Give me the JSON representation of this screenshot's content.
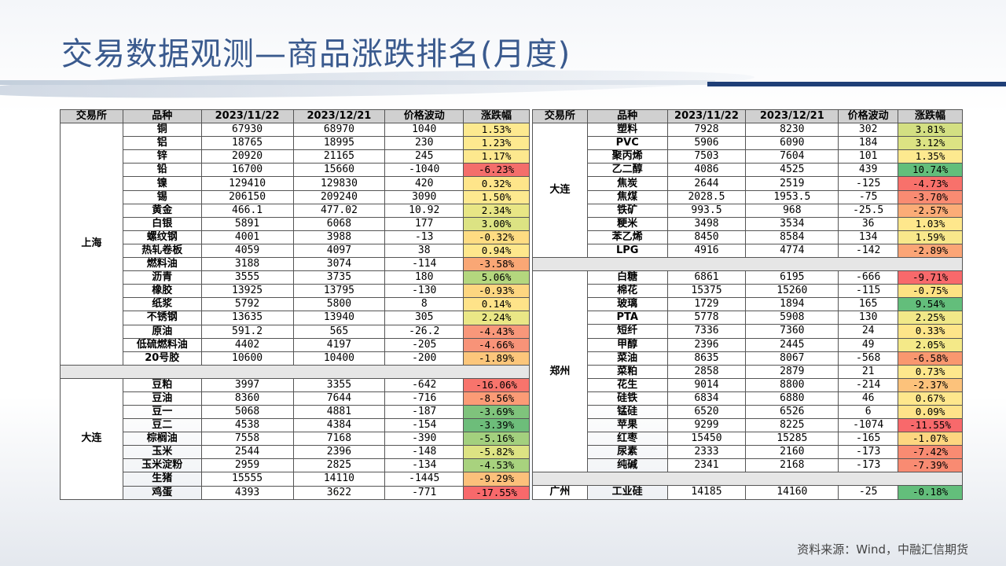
{
  "title": "交易数据观测—商品涨跌排名(月度)",
  "source": "资料来源：Wind，中融汇信期货",
  "headers": [
    "交易所",
    "品种",
    "2023/11/22",
    "2023/12/21",
    "价格波动",
    "涨跌幅"
  ],
  "left_groups": [
    {
      "exchange": "上海",
      "rows": [
        {
          "name": "铜",
          "d1": "67930",
          "d2": "68970",
          "diff": "1040",
          "chg": "1.53%",
          "color": "#fde98f"
        },
        {
          "name": "铝",
          "d1": "18765",
          "d2": "18995",
          "diff": "230",
          "chg": "1.23%",
          "color": "#fde98f"
        },
        {
          "name": "锌",
          "d1": "20920",
          "d2": "21165",
          "diff": "245",
          "chg": "1.17%",
          "color": "#fde88e"
        },
        {
          "name": "铅",
          "d1": "16700",
          "d2": "15660",
          "diff": "-1040",
          "chg": "-6.23%",
          "color": "#f46e6b"
        },
        {
          "name": "镍",
          "d1": "129410",
          "d2": "129830",
          "diff": "420",
          "chg": "0.32%",
          "color": "#fee58a"
        },
        {
          "name": "锡",
          "d1": "206150",
          "d2": "209240",
          "diff": "3090",
          "chg": "1.50%",
          "color": "#fde98f"
        },
        {
          "name": "黄金",
          "d1": "466.1",
          "d2": "477.02",
          "diff": "10.92",
          "chg": "2.34%",
          "color": "#e8e685"
        },
        {
          "name": "白银",
          "d1": "5891",
          "d2": "6068",
          "diff": "177",
          "chg": "3.00%",
          "color": "#dce383"
        },
        {
          "name": "螺纹钢",
          "d1": "4001",
          "d2": "3988",
          "diff": "-13",
          "chg": "-0.32%",
          "color": "#fedc82"
        },
        {
          "name": "热轧卷板",
          "d1": "4059",
          "d2": "4097",
          "diff": "38",
          "chg": "0.94%",
          "color": "#fee78c"
        },
        {
          "name": "燃料油",
          "d1": "3188",
          "d2": "3074",
          "diff": "-114",
          "chg": "-3.58%",
          "color": "#f9a775"
        },
        {
          "name": "沥青",
          "d1": "3555",
          "d2": "3735",
          "diff": "180",
          "chg": "5.06%",
          "color": "#b4d77e"
        },
        {
          "name": "橡胶",
          "d1": "13925",
          "d2": "13795",
          "diff": "-130",
          "chg": "-0.93%",
          "color": "#fdd680"
        },
        {
          "name": "纸浆",
          "d1": "5792",
          "d2": "5800",
          "diff": "8",
          "chg": "0.14%",
          "color": "#fee389"
        },
        {
          "name": "不锈钢",
          "d1": "13635",
          "d2": "13940",
          "diff": "305",
          "chg": "2.24%",
          "color": "#eae786"
        },
        {
          "name": "原油",
          "d1": "591.2",
          "d2": "565",
          "diff": "-26.2",
          "chg": "-4.43%",
          "color": "#f8977a"
        },
        {
          "name": "低硫燃料油",
          "d1": "4402",
          "d2": "4197",
          "diff": "-205",
          "chg": "-4.66%",
          "color": "#f89378"
        },
        {
          "name": "20号胶",
          "d1": "10600",
          "d2": "10400",
          "diff": "-200",
          "chg": "-1.89%",
          "color": "#fcc67b"
        }
      ]
    },
    {
      "exchange": "大连",
      "rows": [
        {
          "name": "豆粕",
          "d1": "3997",
          "d2": "3355",
          "diff": "-642",
          "chg": "-16.06%",
          "color": "#f8746c"
        },
        {
          "name": "豆油",
          "d1": "8360",
          "d2": "7644",
          "diff": "-716",
          "chg": "-8.56%",
          "color": "#fb9b76"
        },
        {
          "name": "豆一",
          "d1": "5068",
          "d2": "4881",
          "diff": "-187",
          "chg": "-3.69%",
          "color": "#7fc37c"
        },
        {
          "name": "豆二",
          "d1": "4538",
          "d2": "4384",
          "diff": "-154",
          "chg": "-3.39%",
          "color": "#6dbd7a"
        },
        {
          "name": "棕榈油",
          "d1": "7558",
          "d2": "7168",
          "diff": "-390",
          "chg": "-5.16%",
          "color": "#a3d07e"
        },
        {
          "name": "玉米",
          "d1": "2544",
          "d2": "2396",
          "diff": "-148",
          "chg": "-5.82%",
          "color": "#dde383"
        },
        {
          "name": "玉米淀粉",
          "d1": "2959",
          "d2": "2825",
          "diff": "-134",
          "chg": "-4.53%",
          "color": "#a8d27e"
        },
        {
          "name": "生猪",
          "d1": "15555",
          "d2": "14110",
          "diff": "-1445",
          "chg": "-9.29%",
          "color": "#fcc07b"
        },
        {
          "name": "鸡蛋",
          "d1": "4393",
          "d2": "3622",
          "diff": "-771",
          "chg": "-17.55%",
          "color": "#f8696b"
        }
      ]
    }
  ],
  "right_groups": [
    {
      "exchange": "大连",
      "rows": [
        {
          "name": "塑料",
          "d1": "7928",
          "d2": "8230",
          "diff": "302",
          "chg": "3.81%",
          "color": "#d3df82"
        },
        {
          "name": "PVC",
          "d1": "5906",
          "d2": "6090",
          "diff": "184",
          "chg": "3.12%",
          "color": "#dce383"
        },
        {
          "name": "聚丙烯",
          "d1": "7503",
          "d2": "7604",
          "diff": "101",
          "chg": "1.35%",
          "color": "#fde98f"
        },
        {
          "name": "乙二醇",
          "d1": "4086",
          "d2": "4525",
          "diff": "439",
          "chg": "10.74%",
          "color": "#63be7b"
        },
        {
          "name": "焦炭",
          "d1": "2644",
          "d2": "2519",
          "diff": "-125",
          "chg": "-4.73%",
          "color": "#f8716b"
        },
        {
          "name": "焦煤",
          "d1": "2028.5",
          "d2": "1953.5",
          "diff": "-75",
          "chg": "-3.70%",
          "color": "#f98b72"
        },
        {
          "name": "铁矿",
          "d1": "993.5",
          "d2": "968",
          "diff": "-25.5",
          "chg": "-2.57%",
          "color": "#fbac77"
        },
        {
          "name": "粳米",
          "d1": "3498",
          "d2": "3534",
          "diff": "36",
          "chg": "1.03%",
          "color": "#fee78c"
        },
        {
          "name": "苯乙烯",
          "d1": "8450",
          "d2": "8584",
          "diff": "134",
          "chg": "1.59%",
          "color": "#f8e88b"
        },
        {
          "name": "LPG",
          "d1": "4916",
          "d2": "4774",
          "diff": "-142",
          "chg": "-2.89%",
          "color": "#fba576"
        }
      ]
    },
    {
      "exchange": "郑州",
      "rows": [
        {
          "name": "白糖",
          "d1": "6861",
          "d2": "6195",
          "diff": "-666",
          "chg": "-9.71%",
          "color": "#f8696b"
        },
        {
          "name": "棉花",
          "d1": "15375",
          "d2": "15260",
          "diff": "-115",
          "chg": "-0.75%",
          "color": "#fee283"
        },
        {
          "name": "玻璃",
          "d1": "1729",
          "d2": "1894",
          "diff": "165",
          "chg": "9.54%",
          "color": "#63be7b"
        },
        {
          "name": "PTA",
          "d1": "5778",
          "d2": "5908",
          "diff": "130",
          "chg": "2.25%",
          "color": "#f1e888"
        },
        {
          "name": "短纤",
          "d1": "7336",
          "d2": "7360",
          "diff": "24",
          "chg": "0.33%",
          "color": "#fee589"
        },
        {
          "name": "甲醇",
          "d1": "2396",
          "d2": "2445",
          "diff": "49",
          "chg": "2.05%",
          "color": "#f4e988"
        },
        {
          "name": "菜油",
          "d1": "8635",
          "d2": "8067",
          "diff": "-568",
          "chg": "-6.58%",
          "color": "#f9976f"
        },
        {
          "name": "菜粕",
          "d1": "2858",
          "d2": "2879",
          "diff": "21",
          "chg": "0.73%",
          "color": "#fee78c"
        },
        {
          "name": "花生",
          "d1": "9014",
          "d2": "8800",
          "diff": "-214",
          "chg": "-2.37%",
          "color": "#fcc27b"
        },
        {
          "name": "硅铁",
          "d1": "6834",
          "d2": "6880",
          "diff": "46",
          "chg": "0.67%",
          "color": "#fee78c"
        },
        {
          "name": "锰硅",
          "d1": "6520",
          "d2": "6526",
          "diff": "6",
          "chg": "0.09%",
          "color": "#fee389"
        },
        {
          "name": "苹果",
          "d1": "9299",
          "d2": "8225",
          "diff": "-1074",
          "chg": "-11.55%",
          "color": "#f8696b"
        },
        {
          "name": "红枣",
          "d1": "15450",
          "d2": "15285",
          "diff": "-165",
          "chg": "-1.07%",
          "color": "#fdd680"
        },
        {
          "name": "尿素",
          "d1": "2333",
          "d2": "2160",
          "diff": "-173",
          "chg": "-7.42%",
          "color": "#f98b72"
        },
        {
          "name": "纯碱",
          "d1": "2341",
          "d2": "2168",
          "diff": "-173",
          "chg": "-7.39%",
          "color": "#f98b72"
        }
      ]
    },
    {
      "exchange": "广州",
      "rows": [
        {
          "name": "工业硅",
          "d1": "14185",
          "d2": "14160",
          "diff": "-25",
          "chg": "-0.18%",
          "color": "#63be7b"
        }
      ]
    }
  ]
}
